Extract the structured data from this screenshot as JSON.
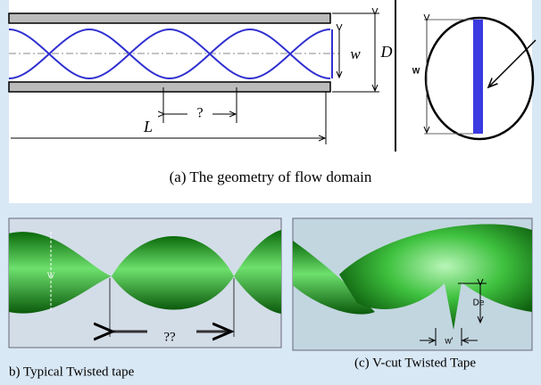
{
  "panel_a": {
    "labels": {
      "w": "w",
      "D": "D",
      "pitch": "?",
      "L": "L",
      "ellipse_w": "W"
    },
    "caption": "(a) The geometry of flow domain"
  },
  "panel_b": {
    "labels": {
      "w": "W",
      "pitch": "??"
    },
    "caption": "b)  Typical Twisted tape"
  },
  "panel_c": {
    "labels": {
      "De": "De",
      "w": "w'"
    },
    "caption": "(c)  V-cut  Twisted Tape"
  }
}
